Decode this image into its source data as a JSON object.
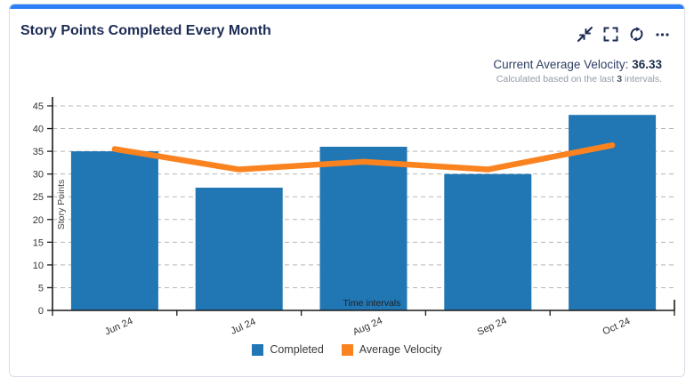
{
  "card": {
    "title": "Story Points Completed Every Month",
    "accent_color": "#2d7ff9",
    "toolbar": {
      "icon_color": "#1c2b54",
      "icons": [
        "collapse-icon",
        "fullscreen-icon",
        "refresh-icon",
        "ellipsis-icon"
      ]
    }
  },
  "velocity": {
    "label": "Current Average Velocity:",
    "value": "36.33",
    "subtext_prefix": "Calculated based on the last",
    "subtext_bold": "3",
    "subtext_suffix": "intervals."
  },
  "chart_data": {
    "type": "bar",
    "title": "Story Points Completed Every Month",
    "categories": [
      "Jun 24",
      "Jul 24",
      "Aug 24",
      "Sep 24",
      "Oct 24"
    ],
    "series": [
      {
        "name": "Completed",
        "kind": "bar",
        "color": "#2176b4",
        "values": [
          35,
          27,
          36,
          30,
          43
        ]
      },
      {
        "name": "Average Velocity",
        "kind": "line",
        "color": "#fa8320",
        "values": [
          35.5,
          31,
          32.7,
          31,
          36.33
        ]
      }
    ],
    "xlabel": "Time intervals",
    "ylabel": "Story Points",
    "ylim": [
      0,
      45
    ],
    "yticks": [
      0,
      5,
      10,
      15,
      20,
      25,
      30,
      35,
      40,
      45
    ],
    "grid": "horizontal-dashed",
    "grid_color": "#b5b5b5",
    "axis_color": "#1a1a1a",
    "tick_label_color": "#333333",
    "legend_position": "bottom"
  }
}
